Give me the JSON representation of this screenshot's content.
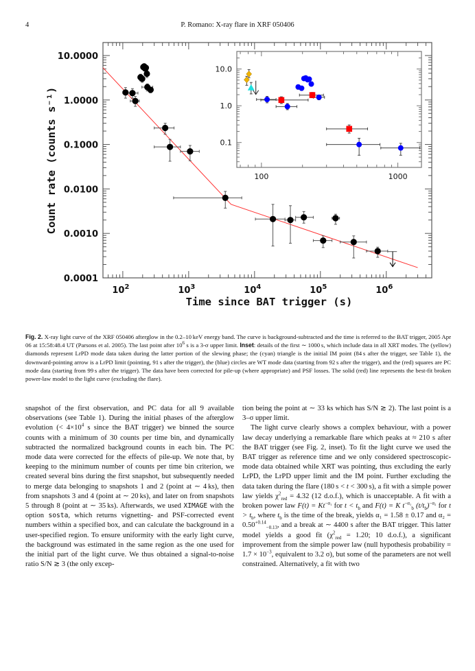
{
  "header": {
    "page_number": "4",
    "running_head": "P. Romano: X-ray flare in XRF 050406"
  },
  "chart_data": [
    {
      "type": "scatter",
      "panel": "main",
      "xlabel": "Time since BAT trigger (s)",
      "ylabel": "Count rate (counts s⁻¹)",
      "xscale": "log",
      "yscale": "log",
      "xlim": [
        50,
        4900000
      ],
      "ylim": [
        0.0001,
        19.6
      ],
      "xticks": [
        {
          "v": 100,
          "label": "10",
          "exp": "2"
        },
        {
          "v": 1000,
          "label": "10",
          "exp": "3"
        },
        {
          "v": 10000,
          "label": "10",
          "exp": "4"
        },
        {
          "v": 100000,
          "label": "10",
          "exp": "5"
        },
        {
          "v": 1000000,
          "label": "10",
          "exp": "6"
        }
      ],
      "yticks": [
        {
          "v": 10,
          "label": "10.0000"
        },
        {
          "v": 1,
          "label": "1.0000"
        },
        {
          "v": 0.1,
          "label": "0.1000"
        },
        {
          "v": 0.01,
          "label": "0.0100"
        },
        {
          "v": 0.001,
          "label": "0.0010"
        },
        {
          "v": 0.0001,
          "label": "0.0001"
        }
      ],
      "marker_color": "#000000",
      "points": [
        {
          "t": 110,
          "tlo": 100,
          "thi": 118,
          "r": 1.48,
          "rlo": 1.1,
          "rhi": 1.9
        },
        {
          "t": 140,
          "tlo": 118,
          "thi": 170,
          "r": 1.43,
          "rlo": 1.1,
          "rhi": 1.8
        },
        {
          "t": 155,
          "tlo": 130,
          "thi": 178,
          "r": 0.95,
          "rlo": 0.72,
          "rhi": 1.2
        },
        {
          "t": 186,
          "tlo": 181,
          "thi": 191,
          "r": 3.25,
          "rlo": 2.7,
          "rhi": 3.8
        },
        {
          "t": 197,
          "tlo": 192,
          "thi": 202,
          "r": 3.0,
          "rlo": 2.5,
          "rhi": 3.5
        },
        {
          "t": 205,
          "tlo": 202,
          "thi": 208,
          "r": 5.5,
          "rlo": 4.8,
          "rhi": 6.3
        },
        {
          "t": 211,
          "tlo": 208,
          "thi": 214,
          "r": 5.7,
          "rlo": 5.0,
          "rhi": 6.4
        },
        {
          "t": 218,
          "tlo": 214,
          "thi": 221,
          "r": 5.1,
          "rlo": 4.5,
          "rhi": 5.8
        },
        {
          "t": 224,
          "tlo": 221,
          "thi": 228,
          "r": 5.3,
          "rlo": 4.6,
          "rhi": 6.0
        },
        {
          "t": 232,
          "tlo": 228,
          "thi": 236,
          "r": 3.9,
          "rlo": 3.2,
          "rhi": 4.6
        },
        {
          "t": 236,
          "tlo": 195,
          "thi": 285,
          "r": 1.95,
          "rlo": 1.6,
          "rhi": 2.3
        },
        {
          "t": 264,
          "tlo": 240,
          "thi": 290,
          "r": 1.7,
          "rlo": 1.45,
          "rhi": 1.95
        },
        {
          "t": 440,
          "tlo": 300,
          "thi": 600,
          "r": 0.235,
          "rlo": 0.17,
          "rhi": 0.3
        },
        {
          "t": 520,
          "tlo": 300,
          "thi": 750,
          "r": 0.088,
          "rlo": 0.042,
          "rhi": 0.13
        },
        {
          "t": 1050,
          "tlo": 750,
          "thi": 1450,
          "r": 0.07,
          "rlo": 0.043,
          "rhi": 0.095
        },
        {
          "t": 3600,
          "tlo": 590,
          "thi": 6400,
          "r": 0.0063,
          "rlo": 0.0037,
          "rhi": 0.0088
        },
        {
          "t": 19000,
          "tlo": 10300,
          "thi": 29000,
          "r": 0.0021,
          "rlo": 0.00052,
          "rhi": 0.0045
        },
        {
          "t": 35000,
          "tlo": 29000,
          "thi": 42000,
          "r": 0.002,
          "rlo": 0.0006,
          "rhi": 0.0042
        },
        {
          "t": 56000,
          "tlo": 42000,
          "thi": 78000,
          "r": 0.0023,
          "rlo": 0.0017,
          "rhi": 0.0031
        },
        {
          "t": 110000,
          "tlo": 78000,
          "thi": 150000,
          "r": 0.00069,
          "rlo": 0.00048,
          "rhi": 0.00088
        },
        {
          "t": 170000,
          "tlo": 150000,
          "thi": 195000,
          "r": 0.0022,
          "rlo": 0.0016,
          "rhi": 0.0027
        },
        {
          "t": 320000,
          "tlo": 200000,
          "thi": 500000,
          "r": 0.00064,
          "rlo": 0.00028,
          "rhi": 0.00088
        },
        {
          "t": 740000,
          "tlo": 500000,
          "thi": 1050000,
          "r": 0.0004,
          "rlo": 0.00029,
          "rhi": 0.00049
        }
      ],
      "upper_limits": [
        {
          "t": 1250000,
          "tlo": 1050000,
          "thi": 1450000,
          "r": 0.00039
        }
      ],
      "model": {
        "name": "broken power law",
        "color": "#ff3030",
        "points": [
          [
            50,
            5.3
          ],
          [
            4400,
            0.0045
          ],
          [
            3000000,
            0.00017
          ]
        ]
      }
    },
    {
      "type": "scatter",
      "panel": "inset",
      "xscale": "log",
      "yscale": "log",
      "xlim": [
        66,
        1490
      ],
      "ylim": [
        0.021,
        30
      ],
      "xticks": [
        {
          "v": 100,
          "label": "100"
        },
        {
          "v": 1000,
          "label": "1000"
        }
      ],
      "yticks": [
        {
          "v": 10,
          "label": "10.0"
        },
        {
          "v": 1,
          "label": "1.0"
        },
        {
          "v": 0.1,
          "label": "0.1"
        }
      ],
      "colors": {
        "LrPD": "#f0b400",
        "IM": "#20e0e0",
        "WT": "#0000ff",
        "PC": "#ff0000"
      },
      "points": [
        {
          "mode": "LrPD",
          "t": 78,
          "tlo": 77,
          "thi": 79,
          "r": 5.1,
          "rlo": 3.6,
          "rhi": 6.3
        },
        {
          "mode": "LrPD",
          "t": 81,
          "tlo": 80,
          "thi": 82,
          "r": 7.3,
          "rlo": 5.8,
          "rhi": 9.6
        },
        {
          "mode": "IM",
          "t": 84,
          "tlo": 84,
          "thi": 84,
          "r": 3.1,
          "rlo": 2.1,
          "rhi": 4.3
        },
        {
          "mode": "WT",
          "t": 110,
          "tlo": 92,
          "thi": 128,
          "r": 1.48,
          "rlo": 1.2,
          "rhi": 1.8
        },
        {
          "mode": "PC",
          "t": 140,
          "tlo": 99,
          "thi": 220,
          "r": 1.43,
          "rlo": 1.15,
          "rhi": 1.75
        },
        {
          "mode": "WT",
          "t": 155,
          "tlo": 128,
          "thi": 182,
          "r": 0.95,
          "rlo": 0.78,
          "rhi": 1.15
        },
        {
          "mode": "WT",
          "t": 186,
          "tlo": 182,
          "thi": 191,
          "r": 3.25,
          "rlo": 2.8,
          "rhi": 3.7
        },
        {
          "mode": "WT",
          "t": 197,
          "tlo": 192,
          "thi": 202,
          "r": 3.0,
          "rlo": 2.6,
          "rhi": 3.4
        },
        {
          "mode": "WT",
          "t": 205,
          "tlo": 202,
          "thi": 208,
          "r": 5.5,
          "rlo": 4.9,
          "rhi": 6.2
        },
        {
          "mode": "WT",
          "t": 211,
          "tlo": 208,
          "thi": 214,
          "r": 5.7,
          "rlo": 5.1,
          "rhi": 6.3
        },
        {
          "mode": "WT",
          "t": 218,
          "tlo": 214,
          "thi": 221,
          "r": 5.1,
          "rlo": 4.5,
          "rhi": 5.7
        },
        {
          "mode": "WT",
          "t": 224,
          "tlo": 221,
          "thi": 228,
          "r": 5.3,
          "rlo": 4.7,
          "rhi": 5.9
        },
        {
          "mode": "WT",
          "t": 232,
          "tlo": 228,
          "thi": 236,
          "r": 3.9,
          "rlo": 3.4,
          "rhi": 4.5
        },
        {
          "mode": "PC",
          "t": 236,
          "tlo": 190,
          "thi": 285,
          "r": 1.95,
          "rlo": 1.65,
          "rhi": 2.3
        },
        {
          "mode": "WT",
          "t": 264,
          "tlo": 240,
          "thi": 290,
          "r": 1.7,
          "rlo": 1.45,
          "rhi": 1.95
        },
        {
          "mode": "PC",
          "t": 440,
          "tlo": 300,
          "thi": 600,
          "r": 0.235,
          "rlo": 0.18,
          "rhi": 0.3
        },
        {
          "mode": "WT",
          "t": 520,
          "tlo": 300,
          "thi": 740,
          "r": 0.088,
          "rlo": 0.045,
          "rhi": 0.13
        },
        {
          "mode": "WT",
          "t": 1050,
          "tlo": 750,
          "thi": 1450,
          "r": 0.071,
          "rlo": 0.045,
          "rhi": 0.095
        }
      ],
      "upper_limits": [
        {
          "mode": "LrPD",
          "t": 91,
          "r": 4.8
        }
      ]
    }
  ],
  "caption": [
    {
      "b": "Fig. 2."
    },
    {
      "t": " X-ray light curve of the XRF 050406 afterglow in the 0.2–10 keV energy band. The curve is background-subtracted and the time is referred to the BAT trigger, 2005 Apr 06 at 15:58:48.4 UT (Parsons et al. 2005). The last point after 10"
    },
    {
      "sup": "6"
    },
    {
      "t": " s is a 3-σ upper limit. "
    },
    {
      "b": "Inset"
    },
    {
      "t": ": details of the first ∼ 1000 s, which include data in all XRT modes. The (yellow) diamonds represent LrPD mode data taken during the latter portion of the slewing phase; the (cyan) triangle is the initial IM point (84 s after the trigger, see Table 1), the downward-pointing arrow is a LrPD limit (pointing, 91 s after the trigger), the (blue) circles are WT mode data (starting from 92 s after the trigger), and the (red) squares are PC mode data (starting from 99 s after the trigger). The data have been corrected for pile-up (where appropriate) and PSF losses. The solid (red) line represents the best-fit broken power-law model to the light curve (excluding the flare)."
    }
  ],
  "body": {
    "left": [
      {
        "indent": false,
        "segs": [
          {
            "t": "snapshot of the first observation, and PC data for all 9 available observations (see Table 1). During the initial phases of the afterglow evolution (< 4×10"
          },
          {
            "sup": "4"
          },
          {
            "t": " s since the BAT trigger) we binned the source counts with a minimum of 30 counts per time bin, and dynamically subtracted the normalized background counts in each bin. The PC mode data were corrected for the effects of pile-up. We note that, by keeping to the minimum number of counts per time bin criterion, we created several bins during the first snapshot, but subsequently needed to merge data belonging to snapshots 1 and 2 (point at ∼ 4 ks), then from snapshots 3 and 4 (point at ∼ 20 ks), and later on from snapshots 5 through 8 (point at ∼ 35 ks). Afterwards, we used "
          },
          {
            "m": "XIMAGE"
          },
          {
            "t": " with the option "
          },
          {
            "m": "sosta"
          },
          {
            "t": ", which returns vignetting- and PSF-corrected event numbers within a specified box, and can calculate the background in a user-specified region. To ensure uniformity with the early light curve, the background was estimated in the same region as the one used for the initial part of the light curve. We thus obtained a signal-to-noise ratio S/N ≳ 3 (the only excep-"
          }
        ]
      }
    ],
    "right": [
      {
        "indent": false,
        "segs": [
          {
            "t": "tion being the point at ∼ 33 ks which has S/N ≳ 2). The last point is a 3–σ upper limit."
          }
        ]
      },
      {
        "indent": true,
        "segs": [
          {
            "t": "The light curve clearly shows a complex behaviour, with a power law decay underlying a remarkable flare which peaks at ≈ 210 s after the BAT trigger (see Fig. 2, inset). To fit the light curve we used the BAT trigger as reference time and we only considered spectroscopic-mode data obtained while XRT was pointing, thus excluding the early LrPD, the LrPD upper limit and the IM point. Further excluding the data taken during the flare (180 s < "
          },
          {
            "i": "t"
          },
          {
            "t": " < 300 s), a fit with a simple power law yields χ"
          },
          {
            "sup": "2"
          },
          {
            "sub": "red"
          },
          {
            "t": " = 4.32 (12 d.o.f.), which is unacceptable. A fit with a broken power law "
          },
          {
            "i": "F(t) = Kt"
          },
          {
            "sup": "−α₁"
          },
          {
            "t": " for "
          },
          {
            "i": "t < t"
          },
          {
            "sub": "b"
          },
          {
            "t": " and "
          },
          {
            "i": "F(t) = K t"
          },
          {
            "sup": "−α₁"
          },
          {
            "sub": "b"
          },
          {
            "i": " (t/t"
          },
          {
            "sub": "b"
          },
          {
            "i": ")"
          },
          {
            "sup": "−α₂"
          },
          {
            "t": " for "
          },
          {
            "i": "t > t"
          },
          {
            "sub": "b"
          },
          {
            "t": ", where "
          },
          {
            "i": "t"
          },
          {
            "sub": "b"
          },
          {
            "t": " is the time of the break, yields α₁ = 1.58 ± 0.17 and α₂ = 0.50"
          },
          {
            "sup": "+0.14"
          },
          {
            "sub": "−0.13"
          },
          {
            "t": ", and a break at ∼ 4400 s after the BAT trigger. This latter model yields a good fit (χ"
          },
          {
            "sup": "2"
          },
          {
            "sub": "red"
          },
          {
            "t": " = 1.20; 10 d.o.f.), a significant improvement from the simple power law (null hypothesis probability = 1.7 × 10"
          },
          {
            "sup": "−3"
          },
          {
            "t": ", equivalent to 3.2 σ), but some of the parameters are not well constrained. Alternatively, a fit with two"
          }
        ]
      }
    ]
  }
}
